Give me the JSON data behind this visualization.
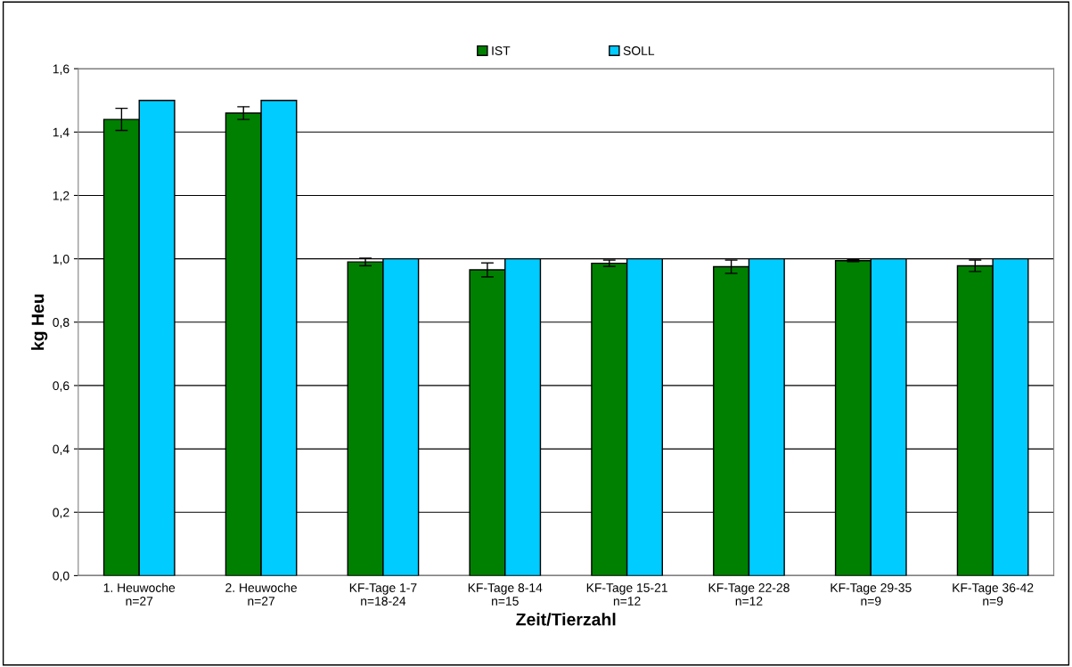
{
  "chart_data": {
    "type": "bar",
    "xlabel": "Zeit/Tierzahl",
    "ylabel": "kg Heu",
    "categories": [
      "1. Heuwoche\nn=27",
      "2. Heuwoche\nn=27",
      "KF-Tage 1-7\nn=18-24",
      "KF-Tage 8-14\nn=15",
      "KF-Tage 15-21\nn=12",
      "KF-Tage 22-28\nn=12",
      "KF-Tage 29-35\nn=9",
      "KF-Tage 36-42\nn=9"
    ],
    "series": [
      {
        "name": "IST",
        "color": "#008000",
        "values": [
          1.44,
          1.46,
          0.99,
          0.965,
          0.986,
          0.975,
          0.994,
          0.978
        ],
        "errors": [
          0.035,
          0.02,
          0.012,
          0.022,
          0.01,
          0.021,
          0.003,
          0.018
        ]
      },
      {
        "name": "SOLL",
        "color": "#00ccff",
        "values": [
          1.5,
          1.5,
          1.0,
          1.0,
          1.0,
          1.0,
          1.0,
          1.0
        ]
      }
    ],
    "ylim": [
      0,
      1.6
    ],
    "yticks": [
      {
        "value": 0,
        "label": "0,0"
      },
      {
        "value": 0.2,
        "label": "0,2"
      },
      {
        "value": 0.4,
        "label": "0,4"
      },
      {
        "value": 0.6,
        "label": "0,6"
      },
      {
        "value": 0.8,
        "label": "0,8"
      },
      {
        "value": 1.0,
        "label": "1,0"
      },
      {
        "value": 1.2,
        "label": "1,2"
      },
      {
        "value": 1.4,
        "label": "1,4"
      },
      {
        "value": 1.6,
        "label": "1,6"
      }
    ],
    "grid": "y",
    "legend": "top"
  }
}
